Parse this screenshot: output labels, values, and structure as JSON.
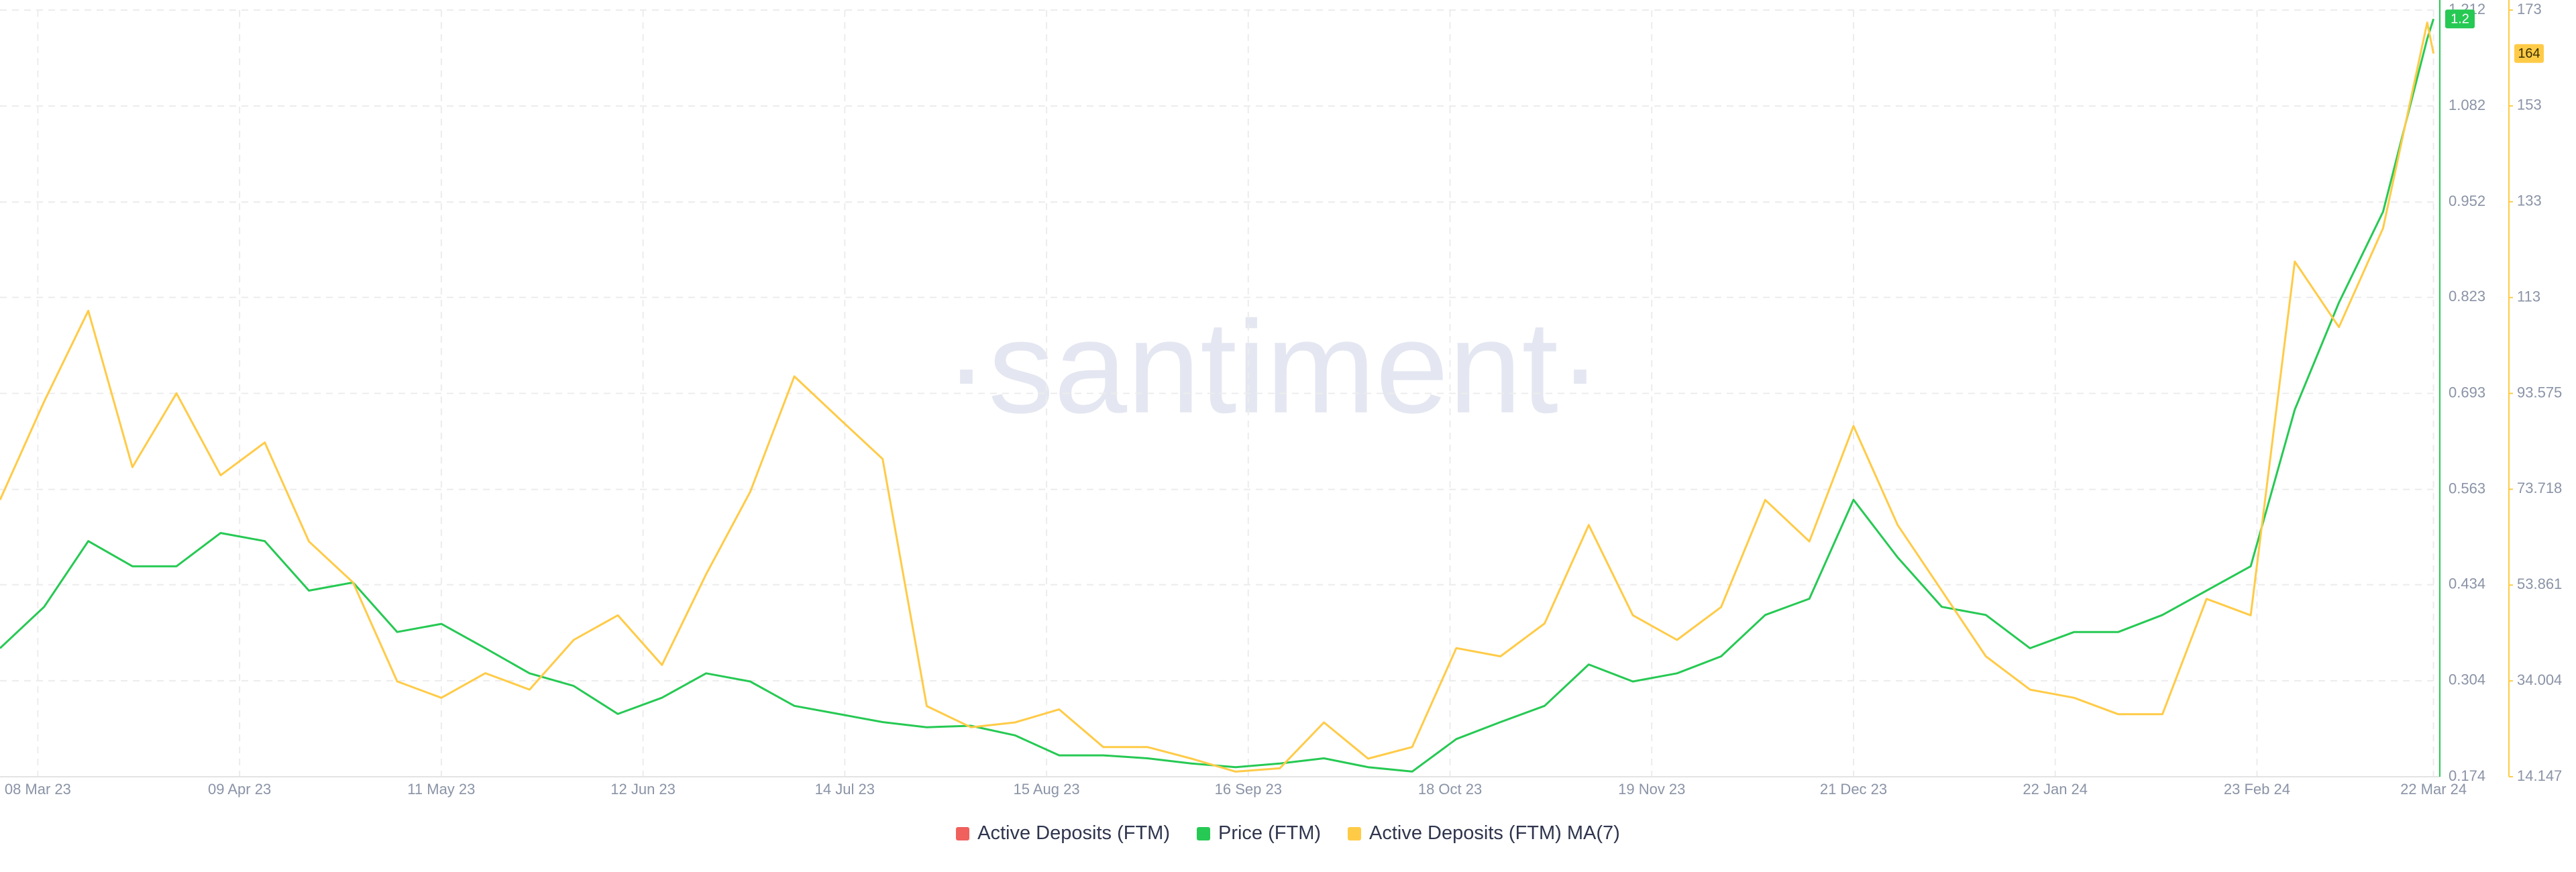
{
  "chart_data": {
    "type": "line",
    "watermark": "·santiment·",
    "x": [
      "2023-03-02",
      "2023-03-09",
      "2023-03-16",
      "2023-03-23",
      "2023-03-30",
      "2023-04-06",
      "2023-04-13",
      "2023-04-20",
      "2023-04-27",
      "2023-05-04",
      "2023-05-11",
      "2023-05-18",
      "2023-05-25",
      "2023-06-01",
      "2023-06-08",
      "2023-06-15",
      "2023-06-22",
      "2023-06-29",
      "2023-07-06",
      "2023-07-13",
      "2023-07-20",
      "2023-07-27",
      "2023-08-03",
      "2023-08-10",
      "2023-08-17",
      "2023-08-24",
      "2023-08-31",
      "2023-09-07",
      "2023-09-14",
      "2023-09-21",
      "2023-09-28",
      "2023-10-05",
      "2023-10-12",
      "2023-10-19",
      "2023-10-26",
      "2023-11-02",
      "2023-11-09",
      "2023-11-16",
      "2023-11-23",
      "2023-11-30",
      "2023-12-07",
      "2023-12-14",
      "2023-12-21",
      "2023-12-28",
      "2024-01-04",
      "2024-01-11",
      "2024-01-18",
      "2024-01-25",
      "2024-02-01",
      "2024-02-08",
      "2024-02-15",
      "2024-02-22",
      "2024-02-29",
      "2024-03-07",
      "2024-03-14",
      "2024-03-21",
      "2024-03-22"
    ],
    "xlim": [
      "2023-03-02",
      "2024-03-23"
    ],
    "xticks": [
      {
        "value": "2023-03-08",
        "label": "08 Mar 23"
      },
      {
        "value": "2023-04-09",
        "label": "09 Apr 23"
      },
      {
        "value": "2023-05-11",
        "label": "11 May 23"
      },
      {
        "value": "2023-06-12",
        "label": "12 Jun 23"
      },
      {
        "value": "2023-07-14",
        "label": "14 Jul 23"
      },
      {
        "value": "2023-08-15",
        "label": "15 Aug 23"
      },
      {
        "value": "2023-09-16",
        "label": "16 Sep 23"
      },
      {
        "value": "2023-10-18",
        "label": "18 Oct 23"
      },
      {
        "value": "2023-11-19",
        "label": "19 Nov 23"
      },
      {
        "value": "2023-12-21",
        "label": "21 Dec 23"
      },
      {
        "value": "2024-01-22",
        "label": "22 Jan 24"
      },
      {
        "value": "2024-02-23",
        "label": "23 Feb 24"
      },
      {
        "value": "2024-03-22",
        "label": "22 Mar 24"
      }
    ],
    "ylim": [
      0.174,
      1.212
    ],
    "yticks": [
      0.174,
      0.304,
      0.434,
      0.563,
      0.693,
      0.823,
      0.952,
      1.082,
      1.212
    ],
    "y2lim": [
      14.147,
      173.003
    ],
    "y2ticks": [
      14.147,
      34.004,
      53.861,
      73.718,
      93.575,
      {
        "value": 113.432,
        "label": "113"
      },
      {
        "value": 133.289,
        "label": "133"
      },
      {
        "value": 153.146,
        "label": "153"
      },
      {
        "value": 173.003,
        "label": "173"
      }
    ],
    "grid": true,
    "legend": "bottom",
    "series": [
      {
        "name": "Active Deposits (FTM)",
        "color": "#f0605d",
        "axis": "y2",
        "values": [
          null,
          null,
          null,
          null,
          null,
          null,
          null,
          null,
          null,
          null,
          null,
          null,
          null,
          null,
          null,
          null,
          null,
          null,
          null,
          null,
          null,
          null,
          null,
          null,
          null,
          null,
          null,
          null,
          null,
          null,
          null,
          null,
          null,
          null,
          null,
          null,
          null,
          null,
          null,
          null,
          null,
          null,
          null,
          null,
          null,
          null,
          null,
          null,
          null,
          null,
          null,
          null,
          null,
          null,
          null,
          null,
          null
        ]
      },
      {
        "name": "Price (FTM)",
        "color": "#26c953",
        "axis": "y",
        "values": [
          0.348,
          0.404,
          0.493,
          0.459,
          0.459,
          0.504,
          0.493,
          0.426,
          0.437,
          0.37,
          0.381,
          0.348,
          0.314,
          0.297,
          0.259,
          0.281,
          0.314,
          0.303,
          0.27,
          0.259,
          0.248,
          0.241,
          0.243,
          0.23,
          0.203,
          0.203,
          0.199,
          0.192,
          0.187,
          0.192,
          0.199,
          0.187,
          0.181,
          0.225,
          0.248,
          0.27,
          0.326,
          0.303,
          0.314,
          0.337,
          0.393,
          0.415,
          0.549,
          0.471,
          0.404,
          0.393,
          0.348,
          0.37,
          0.37,
          0.393,
          0.426,
          0.459,
          0.671,
          0.816,
          0.939,
          1.173,
          1.2
        ]
      },
      {
        "name": "Active Deposits (FTM) MA(7)",
        "color": "#ffcb47",
        "axis": "y2",
        "values": [
          71.5,
          91.9,
          110.7,
          78.3,
          93.6,
          76.6,
          83.4,
          62.9,
          54.4,
          33.9,
          30.5,
          35.6,
          32.2,
          42.5,
          47.6,
          37.3,
          56.1,
          73.2,
          97.1,
          88.5,
          80.0,
          28.8,
          24.4,
          25.4,
          28.1,
          20.3,
          20.3,
          17.9,
          15.2,
          15.9,
          25.4,
          17.9,
          20.3,
          40.8,
          39.1,
          45.9,
          66.3,
          47.6,
          42.5,
          49.3,
          71.5,
          62.9,
          86.8,
          66.3,
          52.7,
          39.1,
          32.2,
          30.5,
          27.1,
          27.1,
          51.0,
          47.6,
          120.9,
          107.3,
          127.8,
          170.4,
          164
        ]
      }
    ]
  }
}
